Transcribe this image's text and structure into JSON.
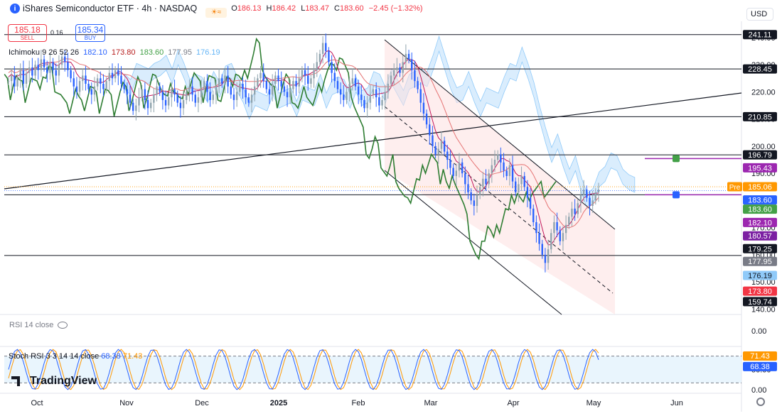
{
  "header": {
    "symbol": "iShares Semiconductor ETF · 4h · NASDAQ",
    "ohlc": [
      {
        "k": "O",
        "v": "186.13"
      },
      {
        "k": "H",
        "v": "186.42"
      },
      {
        "k": "L",
        "v": "183.47"
      },
      {
        "k": "C",
        "v": "183.60"
      }
    ],
    "change": "−2.45 (−1.32%)",
    "currency": "USD",
    "logo_letter": "i"
  },
  "trade": {
    "sell_price": "185.18",
    "sell_label": "SELL",
    "spread": "0.16",
    "buy_price": "185.34",
    "buy_label": "BUY"
  },
  "ichimoku_legend": {
    "label": "Ichimoku 9 26 52 26",
    "values": [
      {
        "v": "182.10",
        "color": "#2962ff"
      },
      {
        "v": "173.80",
        "color": "#b71c1c"
      },
      {
        "v": "183.60",
        "color": "#43a047"
      },
      {
        "v": "177.95",
        "color": "#787b86"
      },
      {
        "v": "176.19",
        "color": "#64b5f6"
      }
    ]
  },
  "rsi_legend": {
    "label": "RSI 14 close"
  },
  "stoch_legend": {
    "label": "Stoch RSI 3 3 14 14 close",
    "k": "68.38",
    "d": "71.43",
    "k_color": "#2962ff",
    "d_color": "#ff9800"
  },
  "branding": "TradingView",
  "chart_data": {
    "type": "candlestick",
    "title": "iShares Semiconductor ETF · 4h · NASDAQ",
    "x_labels": [
      "Oct",
      "Nov",
      "Dec",
      "2025",
      "Feb",
      "Mar",
      "Apr",
      "May",
      "Jun"
    ],
    "price_ticks": [
      "240.00",
      "230.00",
      "220.00",
      "210.00",
      "200.00",
      "190.00",
      "180.00",
      "170.00",
      "160.00",
      "150.00",
      "140.00"
    ],
    "price_range": [
      138,
      246
    ],
    "horizontal_levels": [
      241.11,
      228.45,
      210.85,
      196.79,
      182.1,
      159.74
    ],
    "price_tags": [
      {
        "label": "241.11",
        "value": 241.11,
        "bg": "#131722",
        "fg": "#ffffff"
      },
      {
        "label": "228.45",
        "value": 228.45,
        "bg": "#131722",
        "fg": "#ffffff"
      },
      {
        "label": "210.85",
        "value": 210.85,
        "bg": "#131722",
        "fg": "#ffffff"
      },
      {
        "label": "196.79",
        "value": 196.79,
        "bg": "#131722",
        "fg": "#ffffff"
      },
      {
        "label": "195.43",
        "value": 195.43,
        "bg": "#9c27b0",
        "fg": "#ffffff"
      },
      {
        "label": "185.06",
        "value": 185.06,
        "bg": "#ff9800",
        "fg": "#ffffff",
        "prefix": "Pre"
      },
      {
        "label": "183.60",
        "value": 183.6,
        "bg": "#2962ff",
        "fg": "#ffffff"
      },
      {
        "label": "183.60",
        "value": 183.6,
        "bg": "#43a047",
        "fg": "#ffffff"
      },
      {
        "label": "182.10",
        "value": 182.1,
        "bg": "#9c27b0",
        "fg": "#ffffff"
      },
      {
        "label": "180.57",
        "value": 180.57,
        "bg": "#7b1fa2",
        "fg": "#ffffff"
      },
      {
        "label": "179.25",
        "value": 179.25,
        "bg": "#131722",
        "fg": "#ffffff"
      },
      {
        "label": "177.95",
        "value": 177.95,
        "bg": "#787b86",
        "fg": "#ffffff"
      },
      {
        "label": "176.19",
        "value": 176.19,
        "bg": "#90caf9",
        "fg": "#131722"
      },
      {
        "label": "173.80",
        "value": 173.8,
        "bg": "#f23645",
        "fg": "#ffffff"
      },
      {
        "label": "159.74",
        "value": 159.74,
        "bg": "#131722",
        "fg": "#ffffff"
      }
    ],
    "close_series": [
      224,
      226,
      222,
      225,
      228,
      223,
      227,
      229,
      226,
      230,
      228,
      232,
      229,
      227,
      231,
      228,
      226,
      230,
      233,
      231,
      228,
      225,
      222,
      220,
      224,
      226,
      223,
      221,
      219,
      222,
      225,
      223,
      221,
      224,
      227,
      225,
      228,
      226,
      223,
      221,
      219,
      216,
      213,
      215,
      218,
      221,
      217,
      214,
      216,
      219,
      222,
      220,
      217,
      215,
      218,
      221,
      219,
      216,
      214,
      217,
      220,
      222,
      219,
      216,
      218,
      221,
      224,
      220,
      217,
      219,
      222,
      225,
      223,
      226,
      222,
      219,
      217,
      220,
      223,
      221,
      218,
      216,
      219,
      222,
      225,
      227,
      224,
      221,
      219,
      223,
      226,
      224,
      222,
      220,
      218,
      221,
      224,
      222,
      225,
      228,
      226,
      223,
      225,
      228,
      231,
      234,
      238,
      235,
      231,
      227,
      224,
      221,
      219,
      217,
      220,
      223,
      225,
      222,
      219,
      217,
      214,
      216,
      219,
      221,
      218,
      215,
      217,
      220,
      223,
      226,
      228,
      229,
      227,
      231,
      234,
      232,
      228,
      224,
      221,
      216,
      212,
      208,
      204,
      200,
      197,
      199,
      202,
      198,
      195,
      192,
      189,
      191,
      194,
      190,
      186,
      183,
      180,
      178,
      182,
      185,
      188,
      186,
      190,
      193,
      195,
      197,
      194,
      191,
      189,
      193,
      187,
      183,
      186,
      189,
      185,
      181,
      177,
      172,
      168,
      164,
      160,
      157,
      162,
      168,
      172,
      169,
      165,
      168,
      171,
      174,
      177,
      175,
      179,
      182,
      184,
      181,
      178,
      180,
      183,
      184
    ],
    "series": [
      {
        "name": "Ichimoku 9 26 52 26",
        "values": [
          182.1,
          173.8,
          183.6,
          177.95,
          176.19
        ]
      }
    ],
    "upper_pane": {
      "label": "RSI 14 close",
      "ticks": [
        "0.00"
      ]
    },
    "lower_pane": {
      "label": "Stoch RSI 3 3 14 14 close",
      "ticks": [
        "100.00",
        "50.00",
        "0.00"
      ],
      "k": 68.38,
      "d": 71.43
    },
    "grid": false
  }
}
